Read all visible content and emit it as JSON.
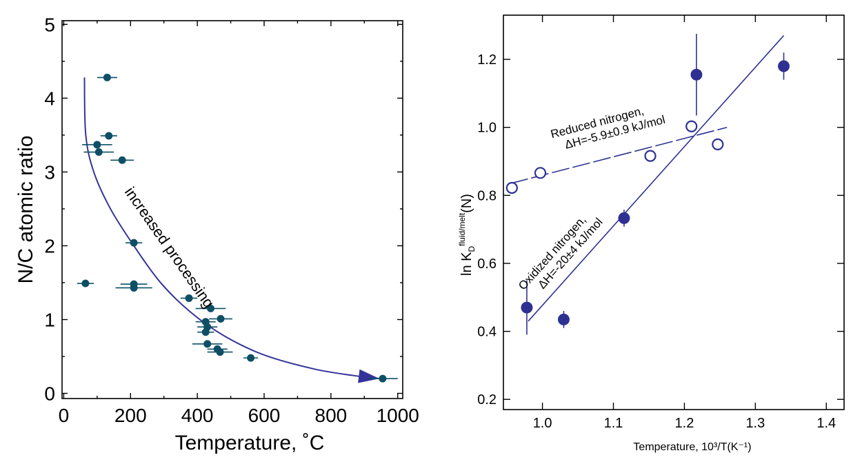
{
  "chart_data": [
    {
      "type": "scatter",
      "xlabel": "Temperature, ˚C",
      "ylabel": "N/C atomic ratio",
      "xlim": [
        -5,
        1015
      ],
      "ylim": [
        -0.07,
        5.05
      ],
      "xticks": [
        0,
        200,
        400,
        600,
        800,
        1000
      ],
      "yticks": [
        0,
        1,
        2,
        3,
        4,
        5
      ],
      "xtick_labels": [
        "0",
        "200",
        "400",
        "600",
        "800",
        "1000"
      ],
      "ytick_labels": [
        "0",
        "1",
        "2",
        "3",
        "4",
        "5"
      ],
      "grid": false,
      "marker_color": "#0e4f66",
      "arrow_color": "#33339a",
      "annotation": "increased processing",
      "arrow_curve": [
        [
          62,
          4.28
        ],
        [
          66,
          3.5
        ],
        [
          90,
          3.0
        ],
        [
          140,
          2.5
        ],
        [
          210,
          2.0
        ],
        [
          290,
          1.5
        ],
        [
          380,
          1.1
        ],
        [
          480,
          0.78
        ],
        [
          600,
          0.52
        ],
        [
          750,
          0.33
        ],
        [
          870,
          0.24
        ],
        [
          945,
          0.2
        ]
      ],
      "points": [
        {
          "x": 130,
          "y": 4.28,
          "xerr": 30
        },
        {
          "x": 135,
          "y": 3.49,
          "xerr": 25
        },
        {
          "x": 100,
          "y": 3.37,
          "xerr": 45
        },
        {
          "x": 105,
          "y": 3.27,
          "xerr": 45
        },
        {
          "x": 175,
          "y": 3.16,
          "xerr": 35
        },
        {
          "x": 210,
          "y": 2.04,
          "xerr": 25
        },
        {
          "x": 65,
          "y": 1.49,
          "xerr": 25
        },
        {
          "x": 210,
          "y": 1.48,
          "xerr": 40
        },
        {
          "x": 210,
          "y": 1.43,
          "xerr": 55
        },
        {
          "x": 375,
          "y": 1.29,
          "xerr": 25
        },
        {
          "x": 440,
          "y": 1.15,
          "xerr": 45
        },
        {
          "x": 470,
          "y": 1.01,
          "xerr": 35
        },
        {
          "x": 425,
          "y": 0.97,
          "xerr": 30
        },
        {
          "x": 430,
          "y": 0.9,
          "xerr": 30
        },
        {
          "x": 425,
          "y": 0.83,
          "xerr": 25
        },
        {
          "x": 430,
          "y": 0.67,
          "xerr": 45
        },
        {
          "x": 460,
          "y": 0.6,
          "xerr": 30
        },
        {
          "x": 468,
          "y": 0.56,
          "xerr": 38
        },
        {
          "x": 560,
          "y": 0.48,
          "xerr": 22
        },
        {
          "x": 955,
          "y": 0.2,
          "xerr": 45
        }
      ]
    },
    {
      "type": "scatter",
      "xlabel": "Temperature, 10³/T(K⁻¹)",
      "ylabel_main": "ln K",
      "ylabel_sub": "D",
      "ylabel_sup": "fluid/melt",
      "ylabel_tail": "(N)",
      "xlim": [
        0.945,
        1.425
      ],
      "ylim": [
        0.17,
        1.33
      ],
      "xticks": [
        1.0,
        1.1,
        1.2,
        1.3,
        1.4
      ],
      "yticks": [
        0.2,
        0.4,
        0.6,
        0.8,
        1.0,
        1.2
      ],
      "xtick_labels": [
        "1.0",
        "1.1",
        "1.2",
        "1.3",
        "1.4"
      ],
      "ytick_labels": [
        "0.2",
        "0.4",
        "0.6",
        "0.8",
        "1.0",
        "1.2"
      ],
      "grid": false,
      "marker_color": "#2e3192",
      "series": [
        {
          "name": "Oxidized nitrogen",
          "label_line1": "Oxidized nitrogen,",
          "label_line2": "ΔH=-20±4 kJ/mol",
          "marker": "filled",
          "points": [
            {
              "x": 0.978,
              "y": 0.47,
              "yerr": 0.08
            },
            {
              "x": 1.03,
              "y": 0.435,
              "yerr": 0.025
            },
            {
              "x": 1.115,
              "y": 0.733,
              "yerr": 0.025
            },
            {
              "x": 1.217,
              "y": 1.155,
              "yerr": 0.12
            },
            {
              "x": 1.34,
              "y": 1.18,
              "yerr": 0.04
            }
          ],
          "fit": {
            "x": [
              0.98,
              1.34
            ],
            "y": [
              0.43,
              1.27
            ],
            "style": "solid"
          }
        },
        {
          "name": "Reduced nitrogen",
          "label_line1": "Reduced nitrogen,",
          "label_line2": "ΔH=-5.9±0.9 kJ/mol",
          "marker": "open",
          "points": [
            {
              "x": 0.957,
              "y": 0.822
            },
            {
              "x": 0.997,
              "y": 0.866
            },
            {
              "x": 1.152,
              "y": 0.916
            },
            {
              "x": 1.21,
              "y": 1.003
            },
            {
              "x": 1.247,
              "y": 0.95
            }
          ],
          "fit": {
            "x": [
              0.955,
              1.26
            ],
            "y": [
              0.835,
              1.0
            ],
            "style": "dashed"
          }
        }
      ]
    }
  ]
}
